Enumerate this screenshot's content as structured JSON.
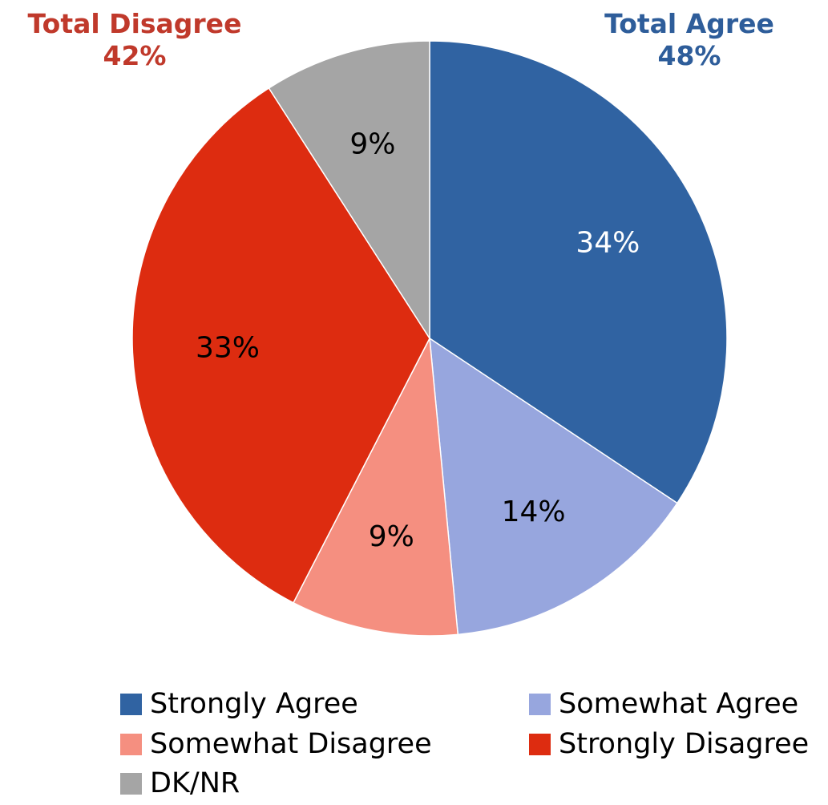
{
  "callouts": {
    "disagree": {
      "label": "Total Disagree",
      "value": "42%",
      "color": "#c0392b"
    },
    "agree": {
      "label": "Total Agree",
      "value": "48%",
      "color": "#2e5d9a"
    }
  },
  "chart_data": {
    "type": "pie",
    "title": "",
    "slices": [
      {
        "name": "Strongly Agree",
        "value": 34,
        "label": "34%",
        "color": "#3063a2",
        "label_color": "#ffffff"
      },
      {
        "name": "Somewhat Agree",
        "value": 14,
        "label": "14%",
        "color": "#97a6de",
        "label_color": "#000000"
      },
      {
        "name": "Somewhat Disagree",
        "value": 9,
        "label": "9%",
        "color": "#f58f80",
        "label_color": "#000000"
      },
      {
        "name": "Strongly Disagree",
        "value": 33,
        "label": "33%",
        "color": "#dd2c10",
        "label_color": "#000000"
      },
      {
        "name": "DK/NR",
        "value": 9,
        "label": "9%",
        "color": "#a5a5a5",
        "label_color": "#000000"
      }
    ],
    "legend": [
      "Strongly Agree",
      "Somewhat Agree",
      "Somewhat Disagree",
      "Strongly Disagree",
      "DK/NR"
    ],
    "legend_position": "bottom"
  }
}
